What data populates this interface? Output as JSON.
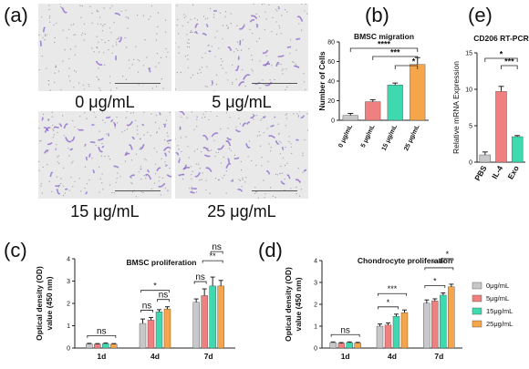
{
  "panels": {
    "a": "(a)",
    "b": "(b)",
    "c": "(c)",
    "d": "(d)",
    "e": "(e)"
  },
  "micrographs": [
    {
      "label": "0 μg/mL"
    },
    {
      "label": "5 μg/mL"
    },
    {
      "label": "15 μg/mL"
    },
    {
      "label": "25 μg/mL"
    }
  ],
  "colors": {
    "grey": "#c8c8cb",
    "pink": "#f08080",
    "teal": "#3fd9b0",
    "orange": "#f5a64a",
    "stain": "#8a63c9"
  },
  "chart_data": [
    {
      "id": "b",
      "type": "bar",
      "title": "BMSC migration",
      "ylabel": "Number of Cells",
      "categories": [
        "0 μg/mL",
        "5 μg/mL",
        "15 μg/mL",
        "25 μg/mL"
      ],
      "values": [
        5,
        19,
        36,
        57
      ],
      "errors": [
        2,
        2,
        2,
        7
      ],
      "colors": [
        "#c8c8cb",
        "#f08080",
        "#3fd9b0",
        "#f5a64a"
      ],
      "ylim": [
        0,
        80
      ],
      "yticks": [
        0,
        20,
        40,
        60,
        80
      ],
      "significance": [
        {
          "from": 0,
          "to": 3,
          "label": "****"
        },
        {
          "from": 1,
          "to": 3,
          "label": "***"
        },
        {
          "from": 2,
          "to": 3,
          "label": "*"
        }
      ]
    },
    {
      "id": "e",
      "type": "bar",
      "title": "CD206 RT-PCR",
      "ylabel": "Relative mRNA Expression",
      "categories": [
        "PBS",
        "IL-4",
        "Exo"
      ],
      "values": [
        1.0,
        9.7,
        3.5
      ],
      "errors": [
        0.4,
        0.7,
        0.15
      ],
      "colors": [
        "#c8c8cb",
        "#f08080",
        "#3fd9b0"
      ],
      "ylim": [
        0,
        15
      ],
      "yticks": [
        0,
        5,
        10,
        15
      ],
      "significance": [
        {
          "from": 0,
          "to": 2,
          "label": "*"
        },
        {
          "from": 1,
          "to": 2,
          "label": "***"
        }
      ]
    },
    {
      "id": "c",
      "type": "bar",
      "title": "BMSC proliferation",
      "ylabel": "Optical density (OD) value (450 nm)",
      "categories": [
        "1d",
        "4d",
        "7d"
      ],
      "series": [
        {
          "values": [
            0.18,
            1.1,
            2.05
          ],
          "errors": [
            0.03,
            0.2,
            0.15
          ]
        },
        {
          "values": [
            0.17,
            1.25,
            2.35
          ],
          "errors": [
            0.03,
            0.12,
            0.3
          ]
        },
        {
          "values": [
            0.2,
            1.62,
            2.78
          ],
          "errors": [
            0.03,
            0.1,
            0.4
          ]
        },
        {
          "values": [
            0.17,
            1.75,
            2.78
          ],
          "errors": [
            0.03,
            0.1,
            0.25
          ]
        }
      ],
      "colors": [
        "#c8c8cb",
        "#f08080",
        "#3fd9b0",
        "#f5a64a"
      ],
      "ylim": [
        0,
        4
      ],
      "yticks": [
        0,
        1,
        2,
        3,
        4
      ],
      "annotations": [
        {
          "group": 0,
          "from": 0,
          "to": 3,
          "label": "ns",
          "level": 0
        },
        {
          "group": 1,
          "from": 0,
          "to": 1,
          "label": "ns",
          "level": 0
        },
        {
          "group": 1,
          "from": 2,
          "to": 3,
          "label": "ns",
          "level": 0
        },
        {
          "group": 1,
          "from": 0,
          "to": 3,
          "label": "*",
          "level": 1
        },
        {
          "group": 2,
          "from": 0,
          "to": 1,
          "label": "ns",
          "level": 0
        },
        {
          "group": 2,
          "from": 1,
          "to": 3,
          "label": "**",
          "level": 1
        },
        {
          "group": 2,
          "from": 2,
          "to": 3,
          "label": "ns",
          "level": 2
        }
      ]
    },
    {
      "id": "d",
      "type": "bar",
      "title": "Chondrocyte proliferation",
      "ylabel": "Optical density (OD) value (450 nm)",
      "categories": [
        "1d",
        "4d",
        "7d"
      ],
      "series": [
        {
          "name": "0μg/mL",
          "values": [
            0.25,
            1.0,
            2.05
          ],
          "errors": [
            0.03,
            0.1,
            0.15
          ]
        },
        {
          "name": "5μg/mL",
          "values": [
            0.22,
            1.05,
            2.15
          ],
          "errors": [
            0.03,
            0.1,
            0.1
          ]
        },
        {
          "name": "15μg/mL",
          "values": [
            0.25,
            1.45,
            2.42
          ],
          "errors": [
            0.03,
            0.1,
            0.1
          ]
        },
        {
          "name": "25μg/mL",
          "values": [
            0.23,
            1.62,
            2.8
          ],
          "errors": [
            0.03,
            0.12,
            0.12
          ]
        }
      ],
      "colors": [
        "#c8c8cb",
        "#f08080",
        "#3fd9b0",
        "#f5a64a"
      ],
      "ylim": [
        0,
        4
      ],
      "yticks": [
        0,
        1,
        2,
        3,
        4
      ],
      "legend": "right",
      "annotations": [
        {
          "group": 0,
          "from": 0,
          "to": 3,
          "label": "ns",
          "level": 0
        },
        {
          "group": 1,
          "from": 0,
          "to": 2,
          "label": "*",
          "level": 0
        },
        {
          "group": 1,
          "from": 0,
          "to": 3,
          "label": "***",
          "level": 1
        },
        {
          "group": 2,
          "from": 0,
          "to": 2,
          "label": "*",
          "level": 0
        },
        {
          "group": 2,
          "from": 0,
          "to": 3,
          "label": "****",
          "level": 1
        },
        {
          "group": 2,
          "from": 2,
          "to": 3,
          "label": "*",
          "level": 2
        }
      ]
    }
  ]
}
